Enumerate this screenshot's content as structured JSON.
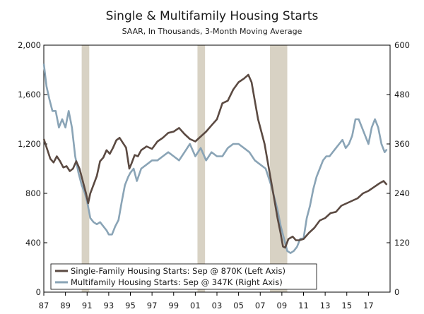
{
  "chart_data": {
    "type": "line",
    "title": "Single & Multifamily Housing Starts",
    "subtitle": "SAAR, In Thousands, 3-Month Moving Average",
    "x_range": [
      1987.0,
      2019.0
    ],
    "x_ticks": [
      {
        "value": 1987,
        "label": "87"
      },
      {
        "value": 1989,
        "label": "89"
      },
      {
        "value": 1991,
        "label": "91"
      },
      {
        "value": 1993,
        "label": "93"
      },
      {
        "value": 1995,
        "label": "95"
      },
      {
        "value": 1997,
        "label": "97"
      },
      {
        "value": 1999,
        "label": "99"
      },
      {
        "value": 2001,
        "label": "01"
      },
      {
        "value": 2003,
        "label": "03"
      },
      {
        "value": 2005,
        "label": "05"
      },
      {
        "value": 2007,
        "label": "07"
      },
      {
        "value": 2009,
        "label": "09"
      },
      {
        "value": 2011,
        "label": "11"
      },
      {
        "value": 2013,
        "label": "13"
      },
      {
        "value": 2015,
        "label": "15"
      },
      {
        "value": 2017,
        "label": "17"
      }
    ],
    "left_axis": {
      "range": [
        0,
        2000
      ],
      "ticks": [
        0,
        400,
        800,
        1200,
        1600,
        2000
      ],
      "labels": [
        "0",
        "400",
        "800",
        "1,200",
        "1,600",
        "2,000"
      ]
    },
    "right_axis": {
      "range": [
        0,
        600
      ],
      "ticks": [
        0,
        120,
        240,
        360,
        480,
        600
      ],
      "labels": [
        "0",
        "120",
        "240",
        "360",
        "480",
        "600"
      ]
    },
    "recessions": [
      [
        1990.5,
        1991.2
      ],
      [
        2001.2,
        2001.9
      ],
      [
        2007.9,
        2009.5
      ]
    ],
    "recession_color": "#d8d2c4",
    "series": [
      {
        "name": "Single-Family Housing Starts",
        "axis": "left",
        "color": "#5b4a42",
        "x": [
          1987.0,
          1987.3,
          1987.6,
          1987.9,
          1988.2,
          1988.5,
          1988.8,
          1989.1,
          1989.4,
          1989.7,
          1990.0,
          1990.3,
          1990.6,
          1990.9,
          1991.1,
          1991.3,
          1991.6,
          1991.9,
          1992.2,
          1992.5,
          1992.8,
          1993.1,
          1993.4,
          1993.7,
          1994.0,
          1994.3,
          1994.6,
          1994.9,
          1995.1,
          1995.4,
          1995.7,
          1996.0,
          1996.5,
          1997.0,
          1997.5,
          1998.0,
          1998.5,
          1999.0,
          1999.5,
          2000.0,
          2000.5,
          2001.0,
          2001.5,
          2002.0,
          2002.5,
          2003.0,
          2003.5,
          2004.0,
          2004.5,
          2005.0,
          2005.5,
          2005.9,
          2006.2,
          2006.5,
          2006.8,
          2007.1,
          2007.4,
          2007.7,
          2008.0,
          2008.3,
          2008.6,
          2008.9,
          2009.1,
          2009.3,
          2009.6,
          2010.0,
          2010.3,
          2010.6,
          2011.0,
          2011.5,
          2012.0,
          2012.5,
          2013.0,
          2013.5,
          2014.0,
          2014.5,
          2015.0,
          2015.5,
          2016.0,
          2016.5,
          2017.0,
          2017.5,
          2018.0,
          2018.4,
          2018.7
        ],
        "values": [
          1240,
          1160,
          1080,
          1050,
          1100,
          1060,
          1010,
          1020,
          980,
          1000,
          1060,
          1000,
          900,
          800,
          720,
          800,
          870,
          940,
          1060,
          1090,
          1150,
          1120,
          1170,
          1230,
          1250,
          1210,
          1170,
          1000,
          1040,
          1110,
          1100,
          1150,
          1180,
          1160,
          1220,
          1250,
          1290,
          1300,
          1330,
          1280,
          1240,
          1220,
          1260,
          1300,
          1350,
          1400,
          1530,
          1550,
          1640,
          1700,
          1730,
          1760,
          1700,
          1550,
          1400,
          1300,
          1200,
          1050,
          900,
          750,
          600,
          470,
          370,
          360,
          430,
          450,
          420,
          420,
          430,
          480,
          520,
          580,
          600,
          640,
          650,
          700,
          720,
          740,
          760,
          800,
          820,
          850,
          880,
          900,
          870
        ]
      },
      {
        "name": "Multifamily Housing Starts",
        "axis": "right",
        "color": "#8aa4b6",
        "x": [
          1987.0,
          1987.25,
          1987.5,
          1987.8,
          1988.1,
          1988.4,
          1988.7,
          1989.0,
          1989.3,
          1989.6,
          1989.9,
          1990.2,
          1990.5,
          1990.8,
          1991.0,
          1991.3,
          1991.6,
          1991.9,
          1992.2,
          1992.5,
          1992.8,
          1993.0,
          1993.3,
          1993.6,
          1993.9,
          1994.2,
          1994.5,
          1994.8,
          1995.0,
          1995.3,
          1995.6,
          1996.0,
          1996.5,
          1997.0,
          1997.5,
          1998.0,
          1998.5,
          1999.0,
          1999.5,
          2000.0,
          2000.5,
          2001.0,
          2001.5,
          2002.0,
          2002.5,
          2003.0,
          2003.5,
          2004.0,
          2004.5,
          2005.0,
          2005.5,
          2006.0,
          2006.5,
          2007.0,
          2007.5,
          2008.0,
          2008.3,
          2008.6,
          2008.9,
          2009.2,
          2009.5,
          2009.8,
          2010.1,
          2010.4,
          2010.7,
          2011.0,
          2011.3,
          2011.6,
          2011.9,
          2012.2,
          2012.5,
          2012.8,
          2013.1,
          2013.4,
          2013.7,
          2014.0,
          2014.3,
          2014.6,
          2014.9,
          2015.2,
          2015.5,
          2015.8,
          2016.1,
          2016.4,
          2016.7,
          2017.0,
          2017.3,
          2017.6,
          2017.9,
          2018.2,
          2018.5,
          2018.7
        ],
        "values": [
          555,
          500,
          470,
          440,
          440,
          400,
          420,
          400,
          440,
          400,
          330,
          290,
          260,
          240,
          220,
          180,
          170,
          165,
          170,
          160,
          150,
          140,
          140,
          160,
          175,
          220,
          260,
          280,
          290,
          300,
          270,
          300,
          310,
          320,
          320,
          330,
          340,
          330,
          320,
          340,
          360,
          330,
          350,
          320,
          340,
          330,
          330,
          350,
          360,
          360,
          350,
          340,
          320,
          310,
          300,
          260,
          230,
          200,
          160,
          130,
          100,
          95,
          100,
          110,
          130,
          130,
          180,
          210,
          250,
          280,
          300,
          320,
          330,
          330,
          340,
          350,
          360,
          370,
          350,
          360,
          380,
          420,
          420,
          400,
          380,
          360,
          400,
          420,
          400,
          360,
          340,
          347
        ]
      }
    ],
    "legend": [
      {
        "label": "Single-Family Housing Starts: Sep @ 870K (Left Axis)",
        "color": "#5b4a42"
      },
      {
        "label": "Multifamily Housing Starts: Sep @ 347K (Right Axis)",
        "color": "#8aa4b6"
      }
    ]
  }
}
